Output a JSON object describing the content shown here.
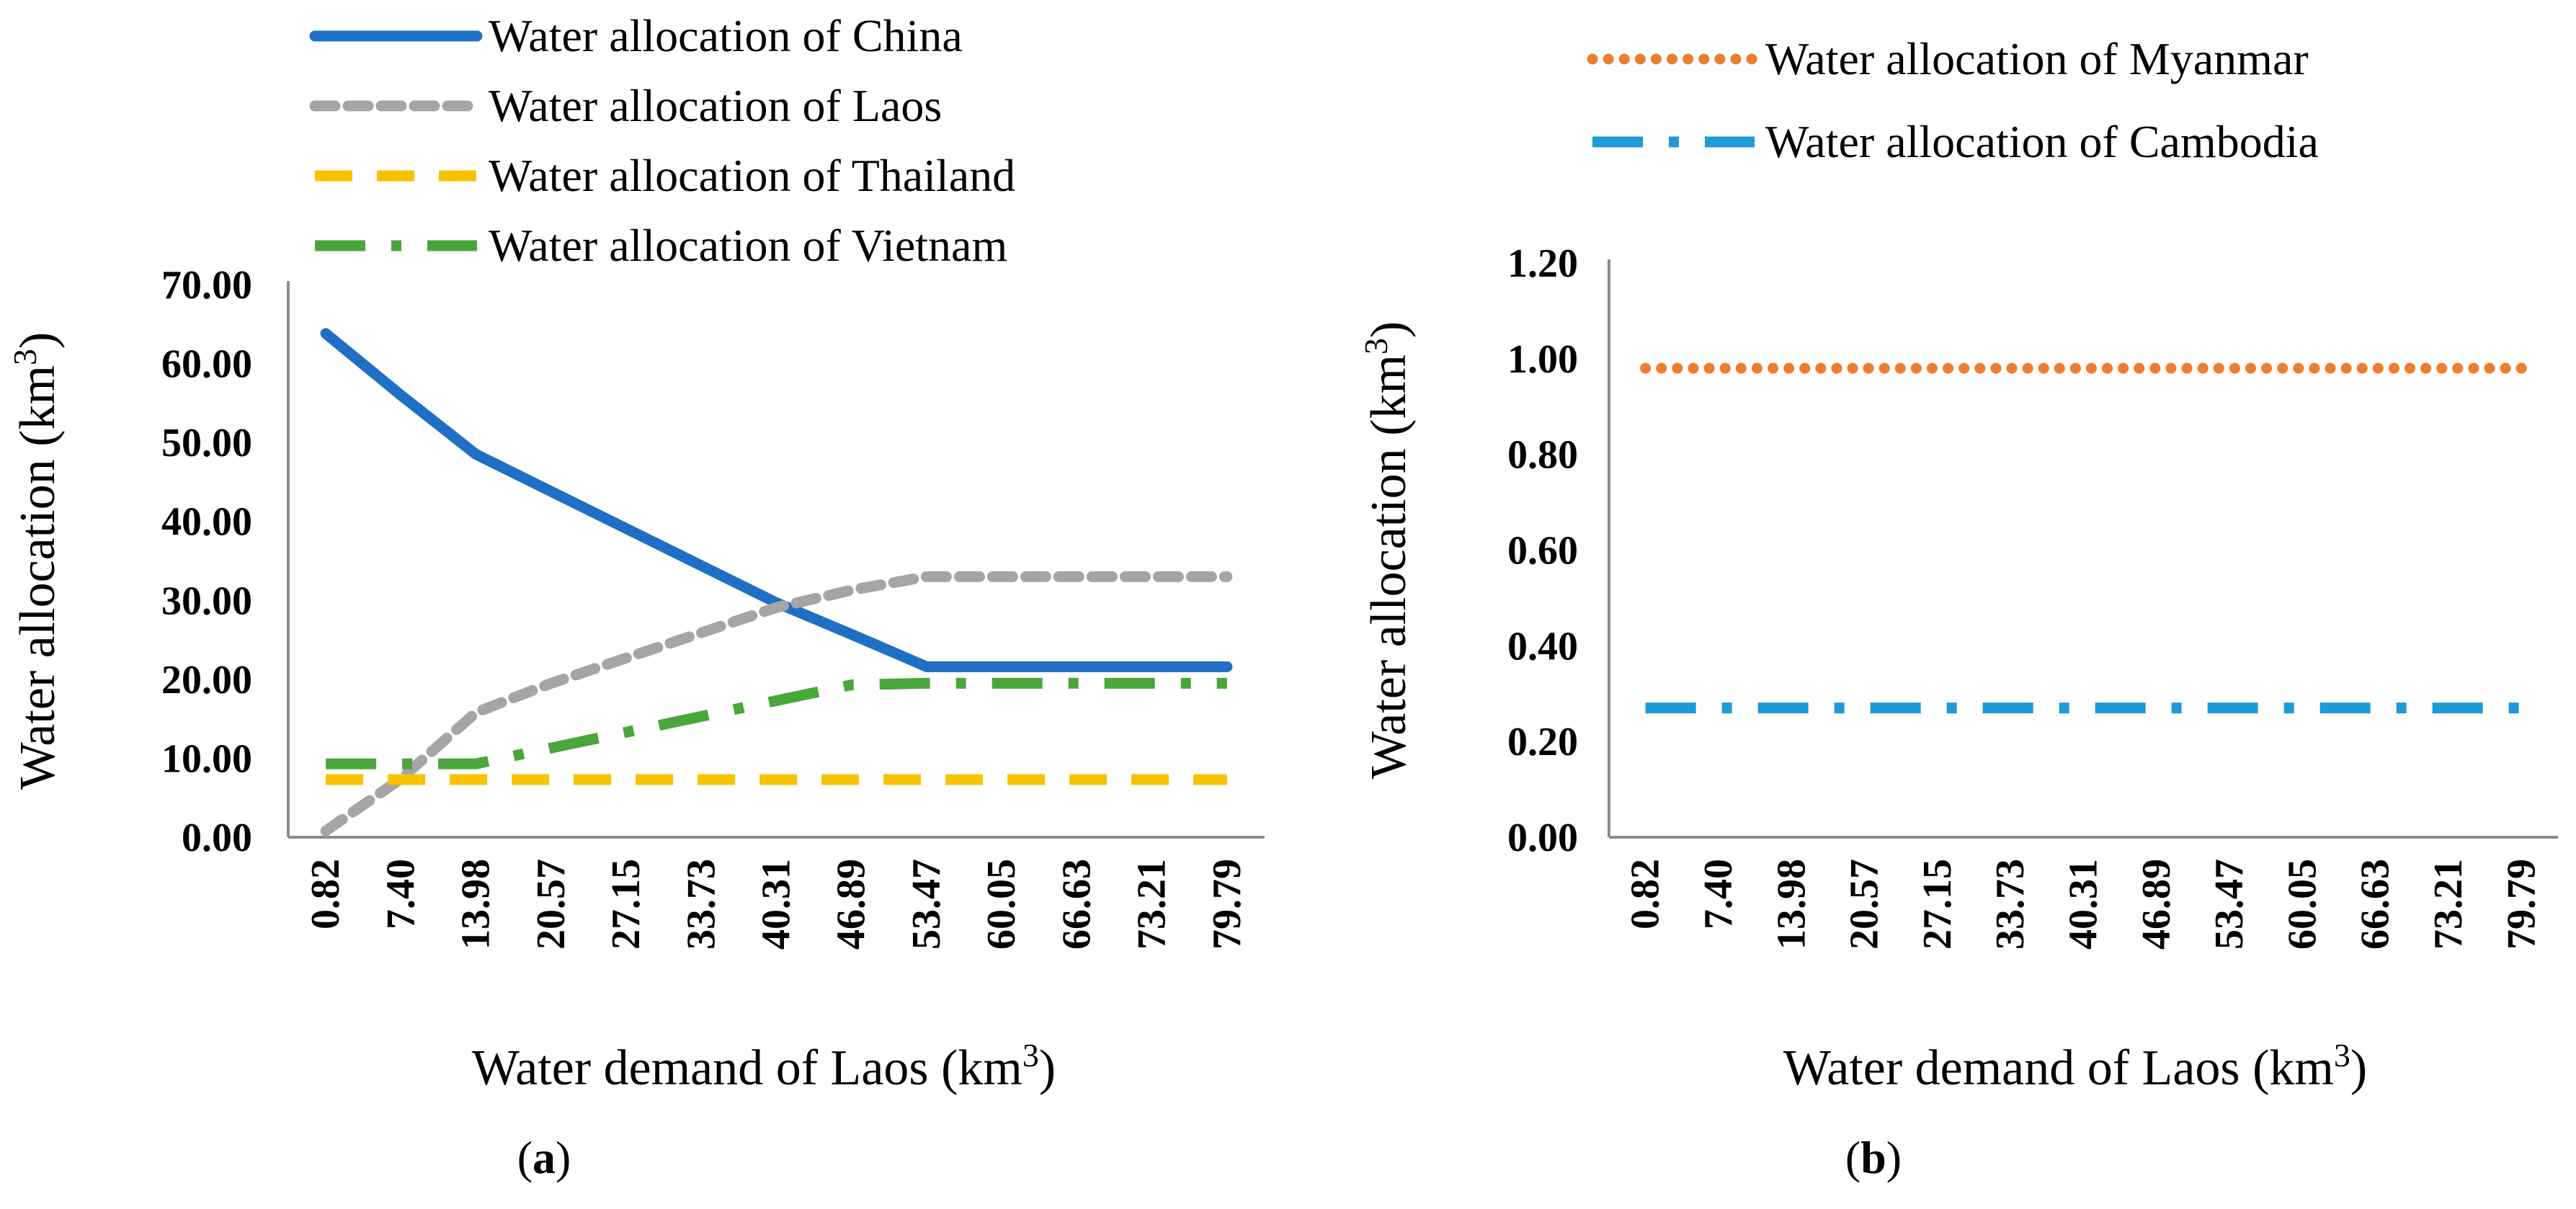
{
  "chart_data": [
    {
      "panel": "a",
      "type": "line",
      "panel_label_letter": "a",
      "categories": [
        "0.82",
        "7.40",
        "13.98",
        "20.57",
        "27.15",
        "33.73",
        "40.31",
        "46.89",
        "53.47",
        "60.05",
        "66.63",
        "73.21",
        "79.79"
      ],
      "xlabel": "Water demand of Laos (km",
      "xlabel_sup": "3",
      "xlabel_close": ")",
      "ylabel": "Water allocation (km",
      "ylabel_sup": "3",
      "ylabel_close": ")",
      "ylim": [
        0,
        70
      ],
      "yticks": [
        "0.00",
        "10.00",
        "20.00",
        "30.00",
        "40.00",
        "50.00",
        "60.00",
        "70.00"
      ],
      "ytick_values": [
        0,
        10,
        20,
        30,
        40,
        50,
        60,
        70
      ],
      "legend_position": "top",
      "series": [
        {
          "name": "Water allocation of China",
          "color": "#1f6fc5",
          "style": "solid",
          "values": [
            63.8,
            56.0,
            48.5,
            43.8,
            39.1,
            34.4,
            29.7,
            25.7,
            21.6,
            21.6,
            21.6,
            21.6,
            21.6
          ]
        },
        {
          "name": "Water allocation of Laos",
          "color": "#a5a5a5",
          "style": "dash",
          "values": [
            0.8,
            7.4,
            15.8,
            19.5,
            22.7,
            25.9,
            29.1,
            31.3,
            33.0,
            33.0,
            33.0,
            33.0,
            33.0
          ]
        },
        {
          "name": "Water allocation of Thailand",
          "color": "#f7c200",
          "style": "longdash",
          "values": [
            7.3,
            7.3,
            7.3,
            7.3,
            7.3,
            7.3,
            7.3,
            7.3,
            7.3,
            7.3,
            7.3,
            7.3,
            7.3
          ]
        },
        {
          "name": "Water allocation of Vietnam",
          "color": "#4aa63c",
          "style": "dashdot",
          "values": [
            9.3,
            9.3,
            9.3,
            11.3,
            13.3,
            15.3,
            17.3,
            19.3,
            19.5,
            19.5,
            19.5,
            19.5,
            19.5
          ]
        }
      ]
    },
    {
      "panel": "b",
      "type": "line",
      "panel_label_letter": "b",
      "categories": [
        "0.82",
        "7.40",
        "13.98",
        "20.57",
        "27.15",
        "33.73",
        "40.31",
        "46.89",
        "53.47",
        "60.05",
        "66.63",
        "73.21",
        "79.79"
      ],
      "xlabel": "Water demand of Laos (km",
      "xlabel_sup": "3",
      "xlabel_close": ")",
      "ylabel": "Water allocation (km",
      "ylabel_sup": "3",
      "ylabel_close": ")",
      "ylim": [
        0,
        1.2
      ],
      "yticks": [
        "0.00",
        "0.20",
        "0.40",
        "0.60",
        "0.80",
        "1.00",
        "1.20"
      ],
      "ytick_values": [
        0,
        0.2,
        0.4,
        0.6,
        0.8,
        1.0,
        1.2
      ],
      "legend_position": "top",
      "series": [
        {
          "name": "Water allocation of Myanmar",
          "color": "#ed7d31",
          "style": "dot",
          "values": [
            0.98,
            0.98,
            0.98,
            0.98,
            0.98,
            0.98,
            0.98,
            0.98,
            0.98,
            0.98,
            0.98,
            0.98,
            0.98
          ]
        },
        {
          "name": "Water allocation of Cambodia",
          "color": "#1f9ad6",
          "style": "dashdot",
          "values": [
            0.27,
            0.27,
            0.27,
            0.27,
            0.27,
            0.27,
            0.27,
            0.27,
            0.27,
            0.27,
            0.27,
            0.27,
            0.27
          ]
        }
      ]
    }
  ]
}
